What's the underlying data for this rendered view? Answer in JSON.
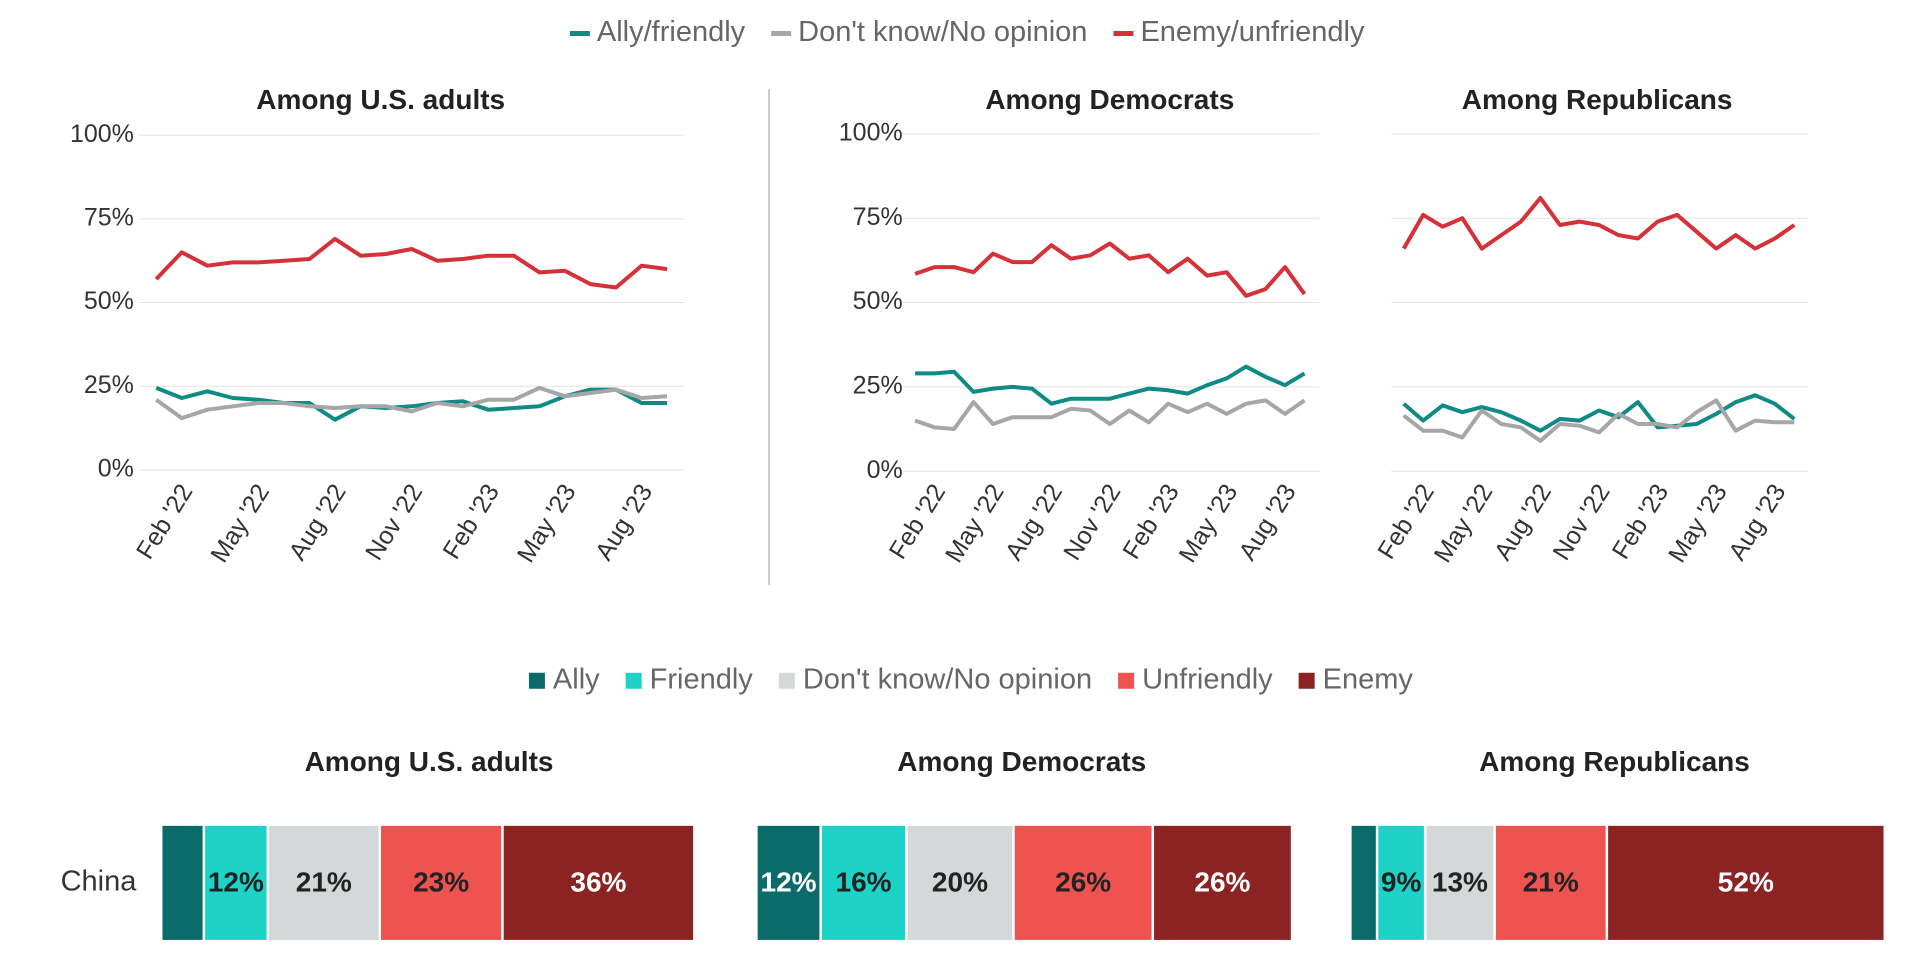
{
  "chart_data": [
    {
      "type": "line",
      "title": "Among U.S. adults",
      "x": [
        "2022-01",
        "2022-02",
        "2022-03",
        "2022-04",
        "2022-05",
        "2022-06",
        "2022-07",
        "2022-08",
        "2022-09",
        "2022-10",
        "2022-11",
        "2022-12",
        "2023-01",
        "2023-02",
        "2023-03",
        "2023-04",
        "2023-05",
        "2023-06",
        "2023-07",
        "2023-08",
        "2023-09"
      ],
      "xticks": [
        {
          "value": "2022-02",
          "label": "Feb '22"
        },
        {
          "value": "2022-05",
          "label": "May '22"
        },
        {
          "value": "2022-08",
          "label": "Aug '22"
        },
        {
          "value": "2022-11",
          "label": "Nov '22"
        },
        {
          "value": "2023-02",
          "label": "Feb '23"
        },
        {
          "value": "2023-05",
          "label": "May '23"
        },
        {
          "value": "2023-08",
          "label": "Aug '23"
        }
      ],
      "ylim": [
        0,
        100
      ],
      "yticks": [
        {
          "value": 0,
          "label": "0%"
        },
        {
          "value": 25,
          "label": "25%"
        },
        {
          "value": 50,
          "label": "50%"
        },
        {
          "value": 75,
          "label": "75%"
        },
        {
          "value": 100,
          "label": "100%"
        }
      ],
      "grid": true,
      "series": [
        {
          "name": "Ally/friendly",
          "color": "#0f8a85",
          "values": [
            24.5,
            21.5,
            23.5,
            21.5,
            21,
            20,
            20,
            15,
            19,
            18.5,
            19,
            20,
            20.5,
            18,
            18.5,
            19,
            22,
            24,
            24,
            20,
            20
          ]
        },
        {
          "name": "Don't know/No opinion",
          "color": "#a6a6a6",
          "values": [
            21,
            15.5,
            18,
            19,
            20,
            20,
            19,
            18.5,
            19,
            19,
            17.5,
            20,
            19,
            21,
            21,
            24.5,
            22,
            23,
            24,
            21.5,
            22
          ]
        },
        {
          "name": "Enemy/unfriendly",
          "color": "#d63038",
          "values": [
            57,
            65,
            61,
            62,
            62,
            62.5,
            63,
            69,
            64,
            64.5,
            66,
            62.5,
            63,
            64,
            64,
            59,
            59.5,
            55.5,
            54.5,
            61,
            60
          ]
        }
      ]
    },
    {
      "type": "line",
      "title": "Among Democrats",
      "x": [
        "2022-01",
        "2022-02",
        "2022-03",
        "2022-04",
        "2022-05",
        "2022-06",
        "2022-07",
        "2022-08",
        "2022-09",
        "2022-10",
        "2022-11",
        "2022-12",
        "2023-01",
        "2023-02",
        "2023-03",
        "2023-04",
        "2023-05",
        "2023-06",
        "2023-07",
        "2023-08",
        "2023-09"
      ],
      "xticks": [
        {
          "value": "2022-02",
          "label": "Feb '22"
        },
        {
          "value": "2022-05",
          "label": "May '22"
        },
        {
          "value": "2022-08",
          "label": "Aug '22"
        },
        {
          "value": "2022-11",
          "label": "Nov '22"
        },
        {
          "value": "2023-02",
          "label": "Feb '23"
        },
        {
          "value": "2023-05",
          "label": "May '23"
        },
        {
          "value": "2023-08",
          "label": "Aug '23"
        }
      ],
      "ylim": [
        0,
        100
      ],
      "yticks": [
        {
          "value": 0,
          "label": "0%"
        },
        {
          "value": 25,
          "label": "25%"
        },
        {
          "value": 50,
          "label": "50%"
        },
        {
          "value": 75,
          "label": "75%"
        },
        {
          "value": 100,
          "label": "100%"
        }
      ],
      "grid": true,
      "series": [
        {
          "values": [
            29,
            29,
            29.5,
            23.5,
            24.5,
            25,
            24.5,
            20,
            21.5,
            21.5,
            21.5,
            23,
            24.5,
            24,
            23,
            25.5,
            27.5,
            31,
            28,
            25.5,
            29
          ]
        },
        {
          "values": [
            15,
            13,
            12.5,
            20.5,
            14,
            16,
            16,
            16,
            18.5,
            18,
            14,
            18,
            14.5,
            20,
            17.5,
            20,
            17,
            20,
            21,
            17,
            21
          ]
        },
        {
          "values": [
            58.5,
            60.5,
            60.5,
            59,
            64.5,
            62,
            62,
            67,
            63,
            64,
            67.5,
            63,
            64,
            59,
            63,
            58,
            59,
            52,
            54,
            60.5,
            52.5
          ]
        }
      ]
    },
    {
      "type": "line",
      "title": "Among Republicans",
      "x": [
        "2022-01",
        "2022-02",
        "2022-03",
        "2022-04",
        "2022-05",
        "2022-06",
        "2022-07",
        "2022-08",
        "2022-09",
        "2022-10",
        "2022-11",
        "2022-12",
        "2023-01",
        "2023-02",
        "2023-03",
        "2023-04",
        "2023-05",
        "2023-06",
        "2023-07",
        "2023-08",
        "2023-09"
      ],
      "xticks": [
        {
          "value": "2022-02",
          "label": "Feb '22"
        },
        {
          "value": "2022-05",
          "label": "May '22"
        },
        {
          "value": "2022-08",
          "label": "Aug '22"
        },
        {
          "value": "2022-11",
          "label": "Nov '22"
        },
        {
          "value": "2023-02",
          "label": "Feb '23"
        },
        {
          "value": "2023-05",
          "label": "May '23"
        },
        {
          "value": "2023-08",
          "label": "Aug '23"
        }
      ],
      "ylim": [
        0,
        100
      ],
      "yticks": [
        0,
        25,
        50,
        75,
        100
      ],
      "ytick_labels": false,
      "grid": true,
      "series": [
        {
          "values": [
            20,
            15,
            19.5,
            17.5,
            19,
            17.5,
            15,
            12,
            15.5,
            15,
            18,
            16,
            20.5,
            13,
            13.5,
            14,
            17,
            20.5,
            22.5,
            20,
            15.5
          ]
        },
        {
          "values": [
            16.5,
            12,
            12,
            10,
            18,
            14,
            13,
            9,
            14,
            13.5,
            11.5,
            17,
            14,
            14,
            13,
            17.5,
            21,
            12,
            15,
            14.5,
            14.5
          ]
        },
        {
          "values": [
            66,
            76,
            72.5,
            75,
            66,
            70,
            74,
            81,
            73,
            74,
            73,
            70,
            69,
            74,
            76,
            71,
            66,
            70,
            66,
            69,
            73
          ]
        }
      ]
    },
    {
      "type": "stacked_bar",
      "title": "Among U.S. adults",
      "categories": [
        "China"
      ],
      "xlim": [
        0,
        100
      ],
      "series": [
        {
          "name": "Ally",
          "color": "#0b6b6b",
          "values": [
            8
          ],
          "value_labels": [
            null
          ]
        },
        {
          "name": "Friendly",
          "color": "#1dd3c8",
          "values": [
            12
          ],
          "value_labels": [
            "12%"
          ]
        },
        {
          "name": "Don't know/No opinion",
          "color": "#d5d8d8",
          "values": [
            21
          ],
          "value_labels": [
            "21%"
          ]
        },
        {
          "name": "Unfriendly",
          "color": "#ef5350",
          "values": [
            23
          ],
          "value_labels": [
            "23%"
          ]
        },
        {
          "name": "Enemy",
          "color": "#8b2323",
          "values": [
            36
          ],
          "value_labels": [
            "36%"
          ]
        }
      ]
    },
    {
      "type": "stacked_bar",
      "title": "Among Democrats",
      "xlim": [
        0,
        100
      ],
      "series": [
        {
          "values": [
            12
          ],
          "value_labels": [
            "12%"
          ]
        },
        {
          "values": [
            16
          ],
          "value_labels": [
            "16%"
          ]
        },
        {
          "values": [
            20
          ],
          "value_labels": [
            "20%"
          ]
        },
        {
          "values": [
            26
          ],
          "value_labels": [
            "26%"
          ]
        },
        {
          "values": [
            26
          ],
          "value_labels": [
            "26%"
          ]
        }
      ]
    },
    {
      "type": "stacked_bar",
      "title": "Among Republicans",
      "xlim": [
        0,
        100
      ],
      "series": [
        {
          "values": [
            5
          ],
          "value_labels": [
            null
          ]
        },
        {
          "values": [
            9
          ],
          "value_labels": [
            "9%"
          ]
        },
        {
          "values": [
            13
          ],
          "value_labels": [
            "13%"
          ]
        },
        {
          "values": [
            21
          ],
          "value_labels": [
            "21%"
          ]
        },
        {
          "values": [
            52
          ],
          "value_labels": [
            "52%"
          ]
        }
      ]
    }
  ]
}
